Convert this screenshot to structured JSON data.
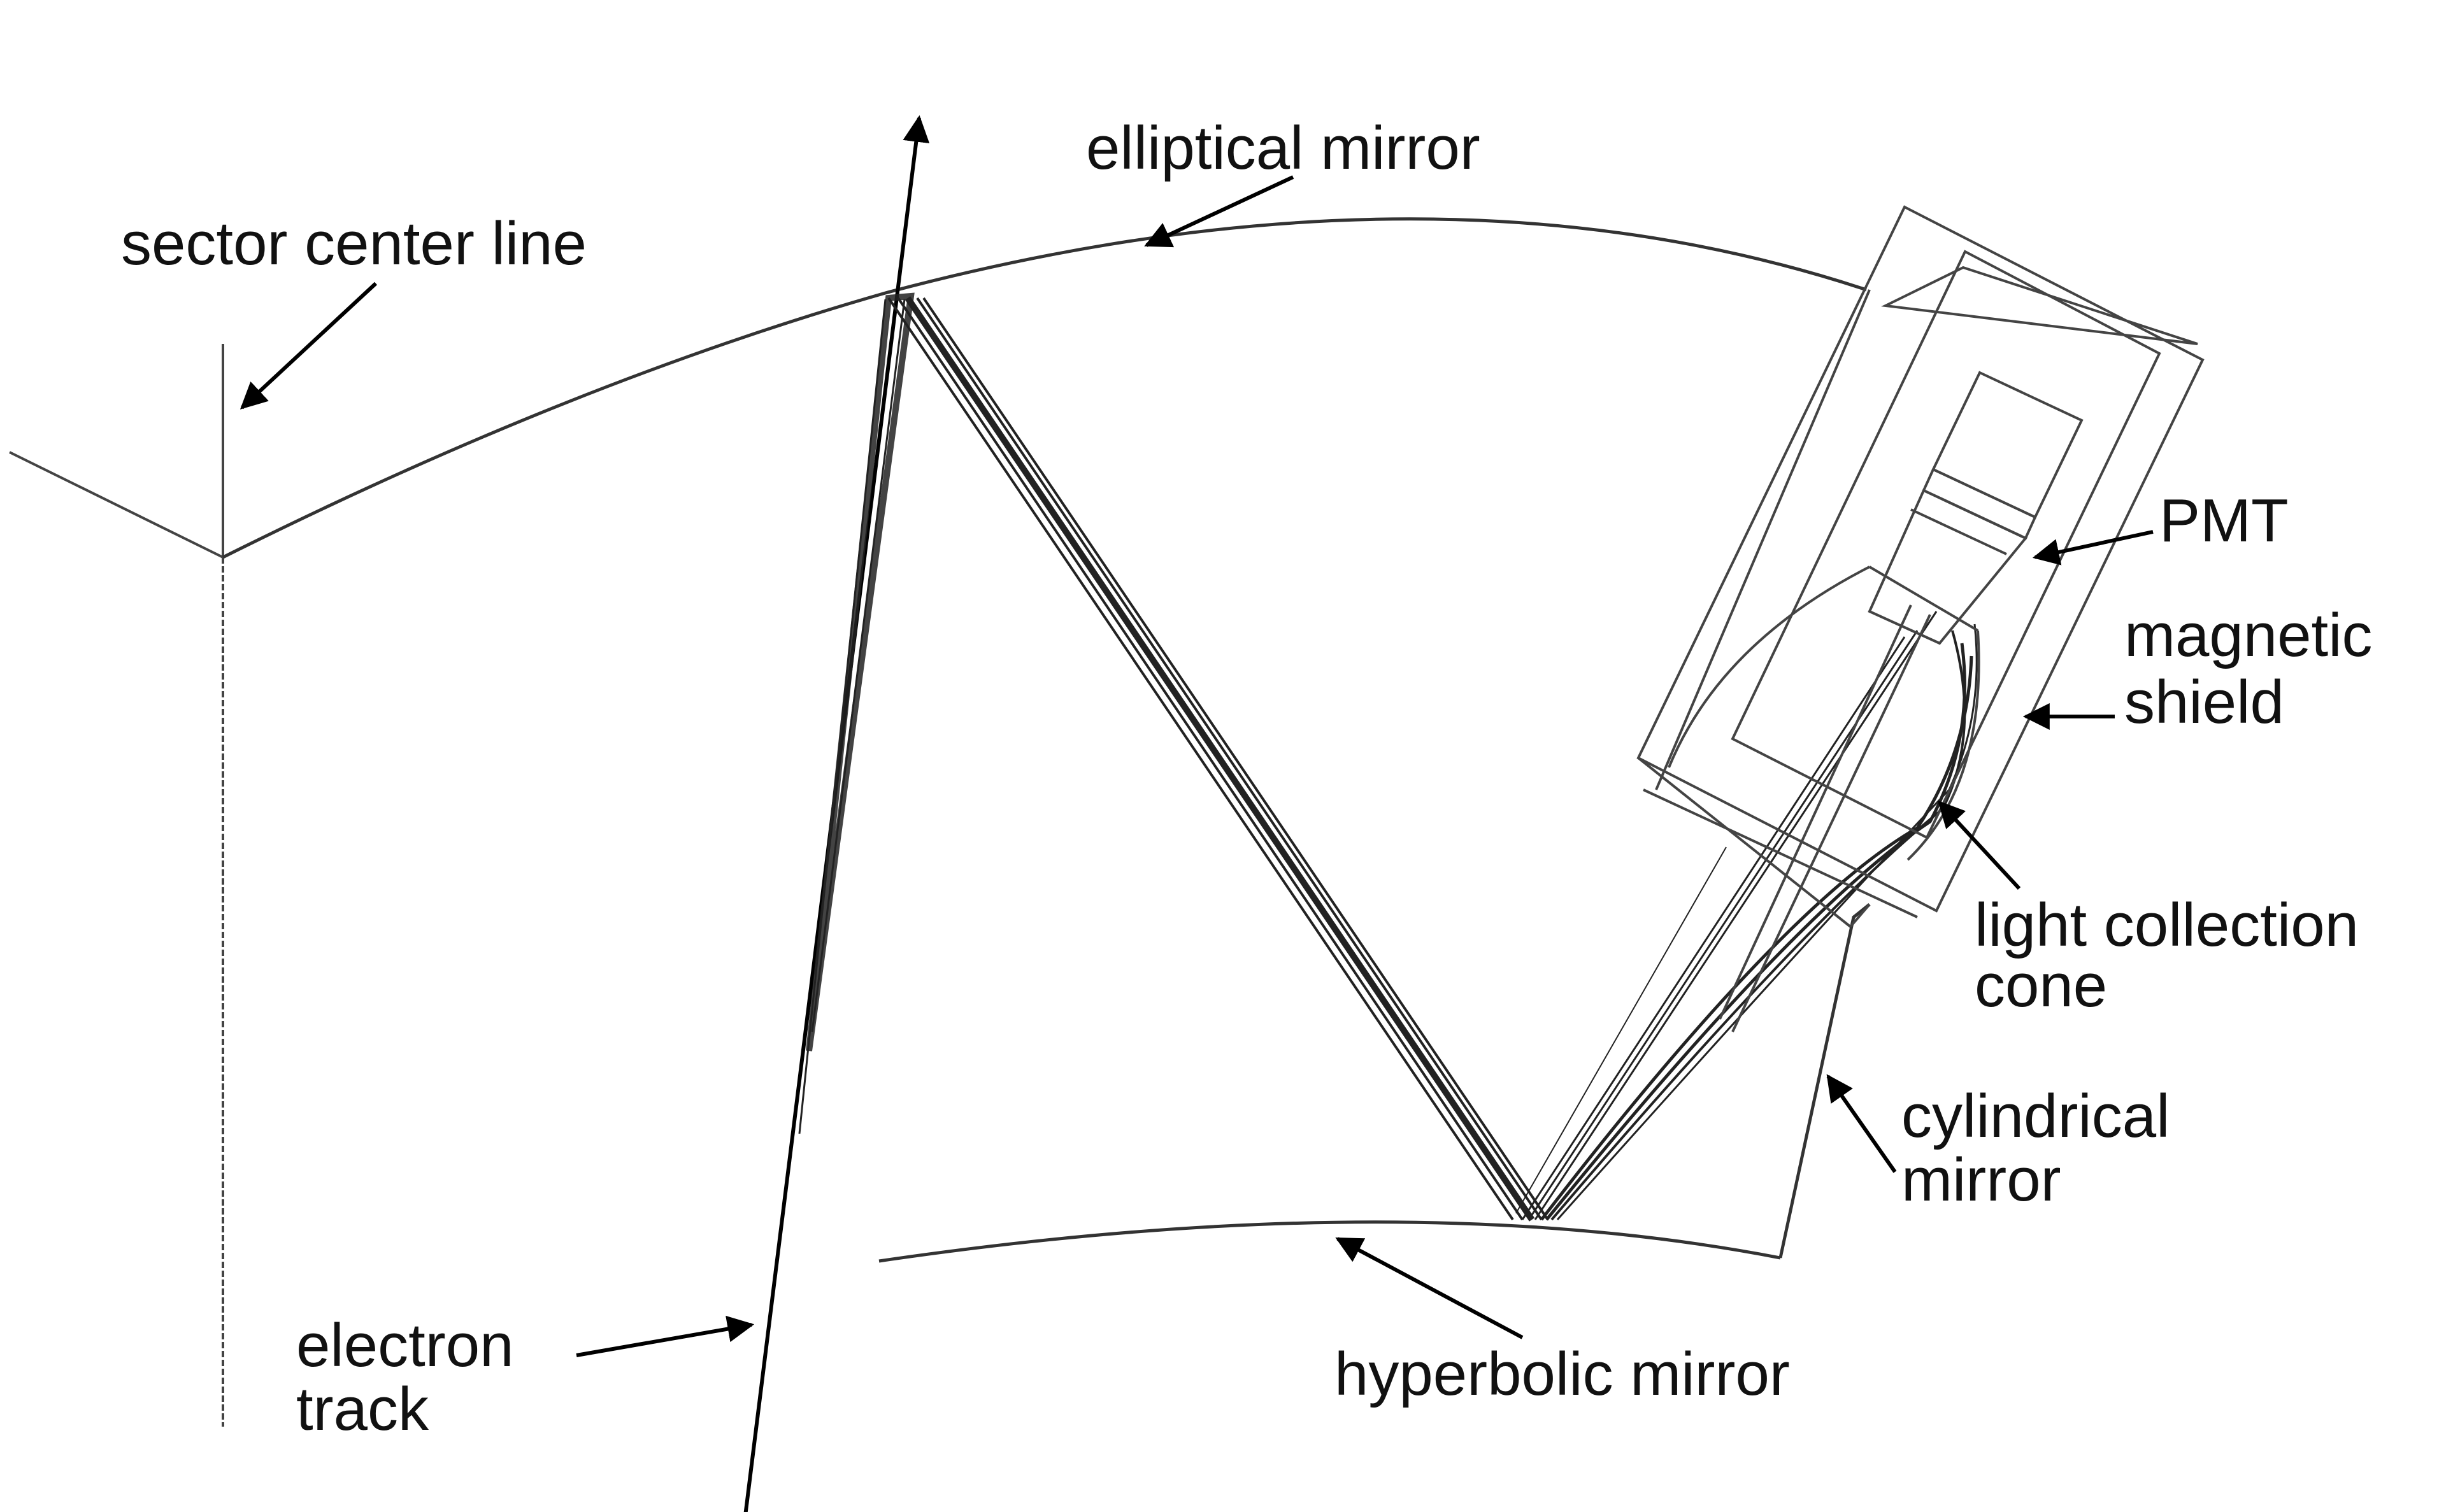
{
  "labels": {
    "sector_center_line": "sector center line",
    "elliptical_mirror": "elliptical mirror",
    "pmt": "PMT",
    "magnetic_shield_1": "magnetic",
    "magnetic_shield_2": "shield",
    "light_collection_cone_1": "light collection",
    "light_collection_cone_2": "cone",
    "cylindrical_mirror_1": "cylindrical",
    "cylindrical_mirror_2": "mirror",
    "electron_track_1": "electron",
    "electron_track_2": "track",
    "hyperbolic_mirror": "hyperbolic mirror"
  },
  "colors": {
    "line": "#333333",
    "arrow": "#000000",
    "text": "#111111"
  }
}
